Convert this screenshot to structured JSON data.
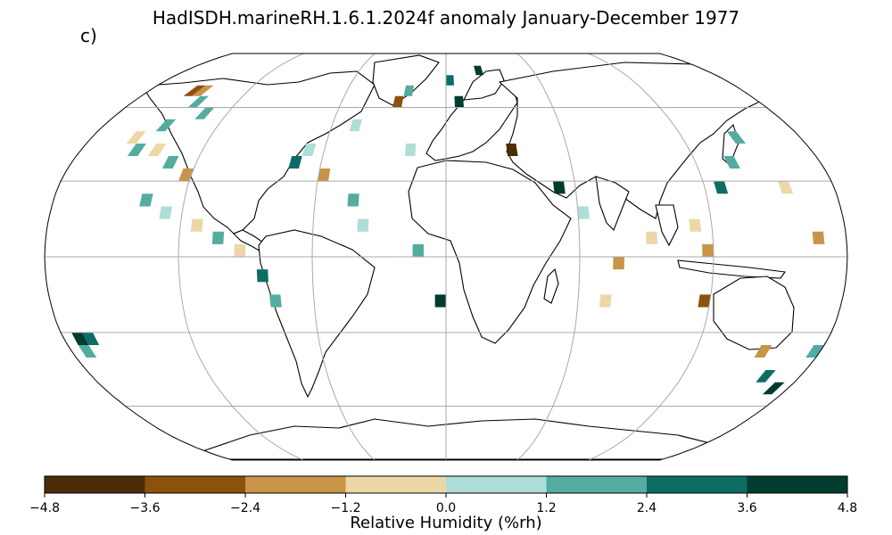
{
  "title": "HadISDH.marineRH.1.6.1.2024f anomaly January-December 1977",
  "panel_label": "c)",
  "colorbar": {
    "label": "Relative Humidity (%rh)",
    "ticks": [
      "−4.8",
      "−3.6",
      "−2.4",
      "−1.2",
      "0.0",
      "1.2",
      "2.4",
      "3.6",
      "4.8"
    ],
    "bins": [
      {
        "range": "-4.8 to -3.6",
        "color": "#4d2d08"
      },
      {
        "range": "-3.6 to -2.4",
        "color": "#8c520d"
      },
      {
        "range": "-2.4 to -1.2",
        "color": "#c89447"
      },
      {
        "range": "-1.2 to 0.0",
        "color": "#ebd8a6"
      },
      {
        "range": "0.0 to 1.2",
        "color": "#aeded8"
      },
      {
        "range": "1.2 to 2.4",
        "color": "#54aca1"
      },
      {
        "range": "2.4 to 3.6",
        "color": "#0d6d64"
      },
      {
        "range": "3.6 to 4.8",
        "color": "#003c30"
      }
    ]
  },
  "chart_data": {
    "type": "heatmap",
    "projection": "Robinson",
    "title": "HadISDH.marineRH.1.6.1.2024f anomaly January-December 1977",
    "grid": true,
    "value_range": [
      -4.8,
      4.8
    ],
    "cells": [
      {
        "lon": -172.5,
        "lat": -32.5,
        "v": 3.8
      },
      {
        "lon": -167.5,
        "lat": -32.5,
        "v": 2.8
      },
      {
        "lon": -172.5,
        "lat": -37.5,
        "v": 2.0
      },
      {
        "lon": -152.5,
        "lat": 67.5,
        "v": -3.0
      },
      {
        "lon": -147.5,
        "lat": 67.5,
        "v": -2.0
      },
      {
        "lon": -142.5,
        "lat": 62.5,
        "v": 1.5
      },
      {
        "lon": -132.5,
        "lat": 57.5,
        "v": 1.5
      },
      {
        "lon": -147.5,
        "lat": 52.5,
        "v": 1.8
      },
      {
        "lon": -157.5,
        "lat": 47.5,
        "v": -1.0
      },
      {
        "lon": -152.5,
        "lat": 42.5,
        "v": 1.5
      },
      {
        "lon": -142.5,
        "lat": 42.5,
        "v": -0.8
      },
      {
        "lon": -132.5,
        "lat": 37.5,
        "v": 1.2
      },
      {
        "lon": -122.5,
        "lat": 32.5,
        "v": -2.0
      },
      {
        "lon": -137.5,
        "lat": 22.5,
        "v": 1.8
      },
      {
        "lon": -127.5,
        "lat": 17.5,
        "v": 0.8
      },
      {
        "lon": -112.5,
        "lat": 12.5,
        "v": -0.8
      },
      {
        "lon": -102.5,
        "lat": 7.5,
        "v": 1.5
      },
      {
        "lon": -92.5,
        "lat": 2.5,
        "v": -0.6
      },
      {
        "lon": -82.5,
        "lat": -7.5,
        "v": 2.8
      },
      {
        "lon": -77.5,
        "lat": -17.5,
        "v": 1.5
      },
      {
        "lon": -72.5,
        "lat": 37.5,
        "v": 2.8
      },
      {
        "lon": -67.5,
        "lat": 42.5,
        "v": 0.8
      },
      {
        "lon": -57.5,
        "lat": 32.5,
        "v": -2.0
      },
      {
        "lon": -47.5,
        "lat": 52.5,
        "v": 0.8
      },
      {
        "lon": -42.5,
        "lat": 22.5,
        "v": 1.5
      },
      {
        "lon": -37.5,
        "lat": 12.5,
        "v": 0.8
      },
      {
        "lon": -27.5,
        "lat": 62.5,
        "v": -3.2
      },
      {
        "lon": -22.5,
        "lat": 67.5,
        "v": 1.8
      },
      {
        "lon": -17.5,
        "lat": 42.5,
        "v": 1.0
      },
      {
        "lon": -12.5,
        "lat": 2.5,
        "v": 1.5
      },
      {
        "lon": -2.5,
        "lat": -17.5,
        "v": 4.0
      },
      {
        "lon": 2.5,
        "lat": 72.5,
        "v": 2.5
      },
      {
        "lon": 7.5,
        "lat": 62.5,
        "v": 4.2
      },
      {
        "lon": 22.5,
        "lat": 77.5,
        "v": 3.8
      },
      {
        "lon": 32.5,
        "lat": 42.5,
        "v": -4.2
      },
      {
        "lon": 52.5,
        "lat": 27.5,
        "v": 3.8
      },
      {
        "lon": 62.5,
        "lat": 17.5,
        "v": 1.0
      },
      {
        "lon": 77.5,
        "lat": -2.5,
        "v": -1.5
      },
      {
        "lon": 72.5,
        "lat": -17.5,
        "v": -0.8
      },
      {
        "lon": 92.5,
        "lat": 7.5,
        "v": -0.8
      },
      {
        "lon": 112.5,
        "lat": 12.5,
        "v": -1.0
      },
      {
        "lon": 117.5,
        "lat": 2.5,
        "v": -2.0
      },
      {
        "lon": 117.5,
        "lat": -17.5,
        "v": -3.0
      },
      {
        "lon": 127.5,
        "lat": 27.5,
        "v": 2.8
      },
      {
        "lon": 137.5,
        "lat": 37.5,
        "v": 1.5
      },
      {
        "lon": 147.5,
        "lat": 47.5,
        "v": 1.8
      },
      {
        "lon": 157.5,
        "lat": 27.5,
        "v": -0.8
      },
      {
        "lon": 167.5,
        "lat": 7.5,
        "v": -2.2
      },
      {
        "lon": 152.5,
        "lat": -37.5,
        "v": -2.0
      },
      {
        "lon": 162.5,
        "lat": -47.5,
        "v": 3.0
      },
      {
        "lon": 172.5,
        "lat": -52.5,
        "v": 4.0
      },
      {
        "lon": 177.5,
        "lat": -37.5,
        "v": 1.5
      }
    ]
  }
}
